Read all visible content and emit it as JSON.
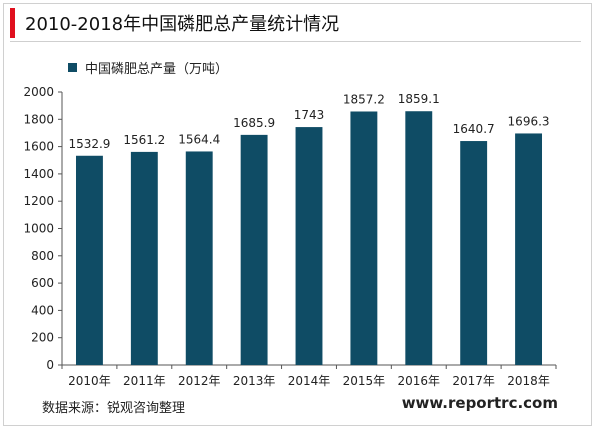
{
  "title": "2010-2018年中国磷肥总产量统计情况",
  "colors": {
    "bar": "#0f4c65",
    "accent": "#e0101e",
    "axis": "#555555",
    "grid": "#d9d9d9"
  },
  "chart_data": {
    "type": "bar",
    "categories": [
      "2010年",
      "2011年",
      "2012年",
      "2013年",
      "2014年",
      "2015年",
      "2016年",
      "2017年",
      "2018年"
    ],
    "series": [
      {
        "name": "中国磷肥总产量（万吨）",
        "values": [
          1532.9,
          1561.2,
          1564.4,
          1685.9,
          1743,
          1857.2,
          1859.1,
          1640.7,
          1696.3
        ],
        "labels": [
          "1532.9",
          "1561.2",
          "1564.4",
          "1685.9",
          "1743",
          "1857.2",
          "1859.1",
          "1640.7",
          "1696.3"
        ]
      }
    ],
    "ylim": [
      0,
      2000
    ],
    "yticks": [
      0,
      200,
      400,
      600,
      800,
      1000,
      1200,
      1400,
      1600,
      1800,
      2000
    ],
    "legend_position": "top-left",
    "grid": false
  },
  "footer": {
    "source": "数据来源：锐观咨询整理",
    "website": "www.reportrc.com"
  }
}
